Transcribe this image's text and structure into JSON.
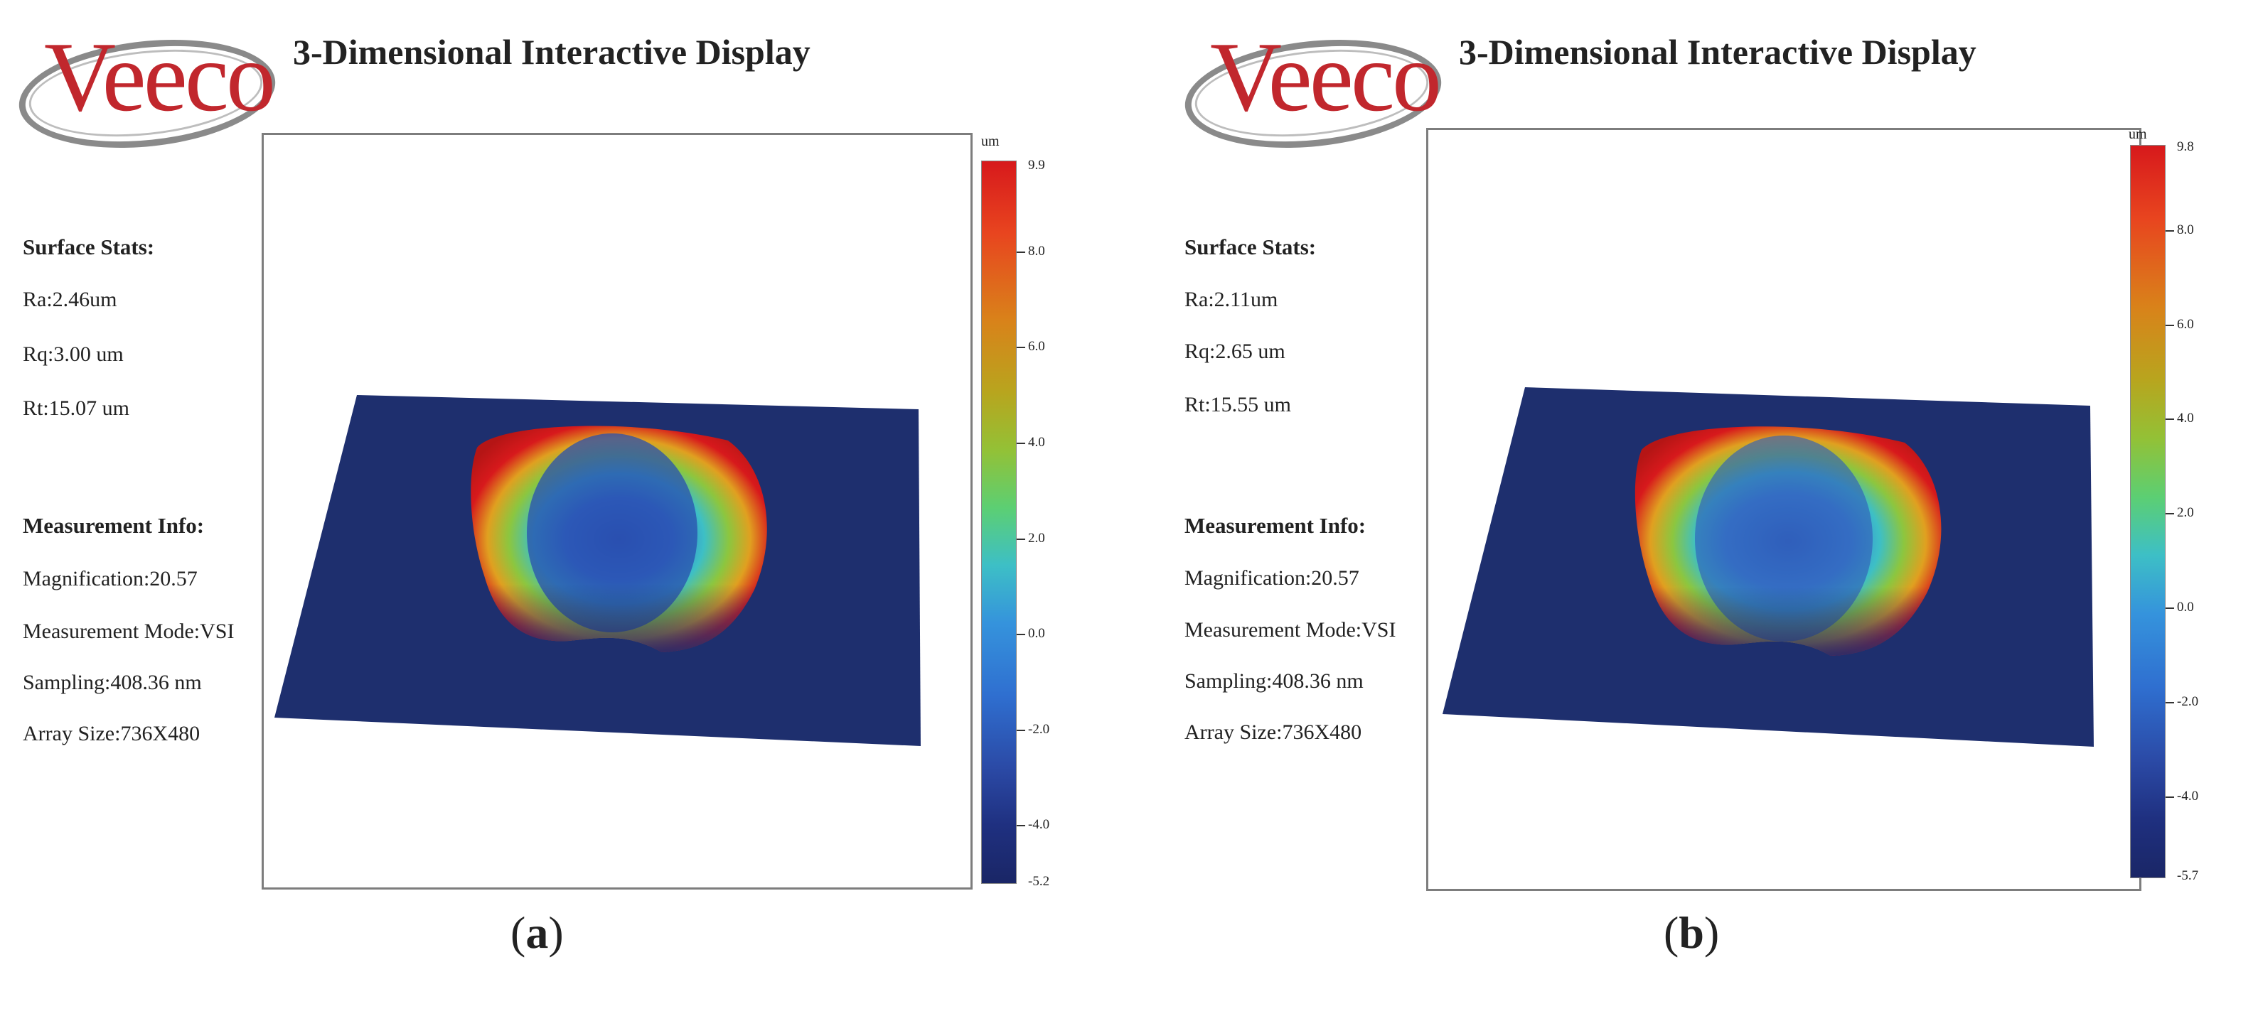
{
  "header": {
    "brand": "Veeco",
    "title": "3-Dimensional Interactive Display"
  },
  "colorbar": {
    "unit": "um",
    "colors": [
      "#d7191c",
      "#d9821a",
      "#93c136",
      "#3dbfc6",
      "#2f6fd0",
      "#1a2666"
    ]
  },
  "panels": [
    {
      "caption": "a",
      "surface_heading": "Surface Stats:",
      "surface_stats": [
        "Ra:2.46um",
        "Rq:3.00 um",
        "Rt:15.07 um"
      ],
      "measurement_heading": "Measurement Info:",
      "measurement_info": [
        "Magnification:20.57",
        "Measurement Mode:VSI",
        "Sampling:408.36 nm",
        "Array Size:736X480"
      ],
      "colorbar_max": "9.9",
      "colorbar_min": "-5.2",
      "colorbar_ticks": [
        "8.0",
        "6.0",
        "4.0",
        "2.0",
        "0.0",
        "-2.0",
        "-4.0"
      ],
      "colorbar_tick_values": [
        8.0,
        6.0,
        4.0,
        2.0,
        0.0,
        -2.0,
        -4.0
      ],
      "colorbar_range": [
        -5.2,
        9.9
      ]
    },
    {
      "caption": "b",
      "surface_heading": "Surface Stats:",
      "surface_stats": [
        "Ra:2.11um",
        "Rq:2.65 um",
        "Rt:15.55 um"
      ],
      "measurement_heading": "Measurement Info:",
      "measurement_info": [
        "Magnification:20.57",
        "Measurement Mode:VSI",
        "Sampling:408.36 nm",
        "Array Size:736X480"
      ],
      "colorbar_max": "9.8",
      "colorbar_min": "-5.7",
      "colorbar_ticks": [
        "8.0",
        "6.0",
        "4.0",
        "2.0",
        "0.0",
        "-2.0",
        "-4.0"
      ],
      "colorbar_tick_values": [
        8.0,
        6.0,
        4.0,
        2.0,
        0.0,
        -2.0,
        -4.0
      ],
      "colorbar_range": [
        -5.7,
        9.8
      ]
    }
  ]
}
